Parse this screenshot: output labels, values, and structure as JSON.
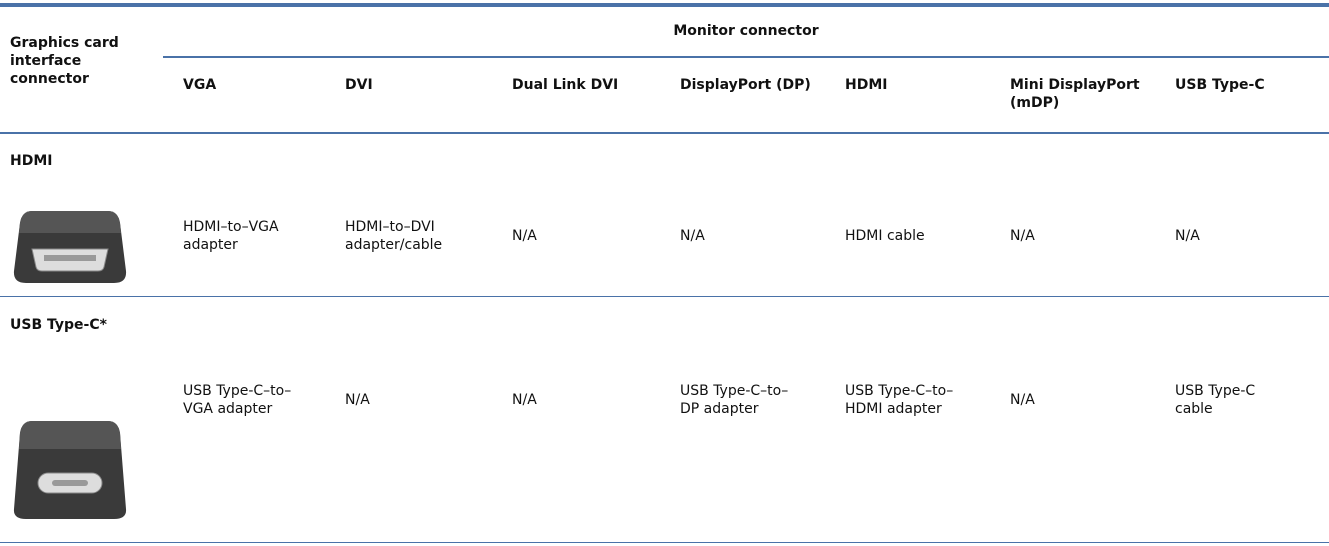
{
  "header": {
    "title": "Graphics card interface connector",
    "group": "Monitor connector",
    "columns": [
      "VGA",
      "DVI",
      "Dual Link DVI",
      "DisplayPort (DP)",
      "HDMI",
      "Mini DisplayPort (mDP)",
      "USB Type-C"
    ]
  },
  "rows": [
    {
      "label": "HDMI",
      "cells": [
        "HDMI–to–VGA adapter",
        "HDMI–to–DVI adapter/cable",
        "N/A",
        "N/A",
        "HDMI cable",
        "N/A",
        "N/A"
      ]
    },
    {
      "label": "USB Type-C*",
      "cells": [
        "USB Type-C–to–VGA adapter",
        "N/A",
        "N/A",
        "USB Type-C–to–DP adapter",
        "USB Type-C–to–HDMI adapter",
        "N/A",
        "USB Type-C cable"
      ]
    }
  ]
}
